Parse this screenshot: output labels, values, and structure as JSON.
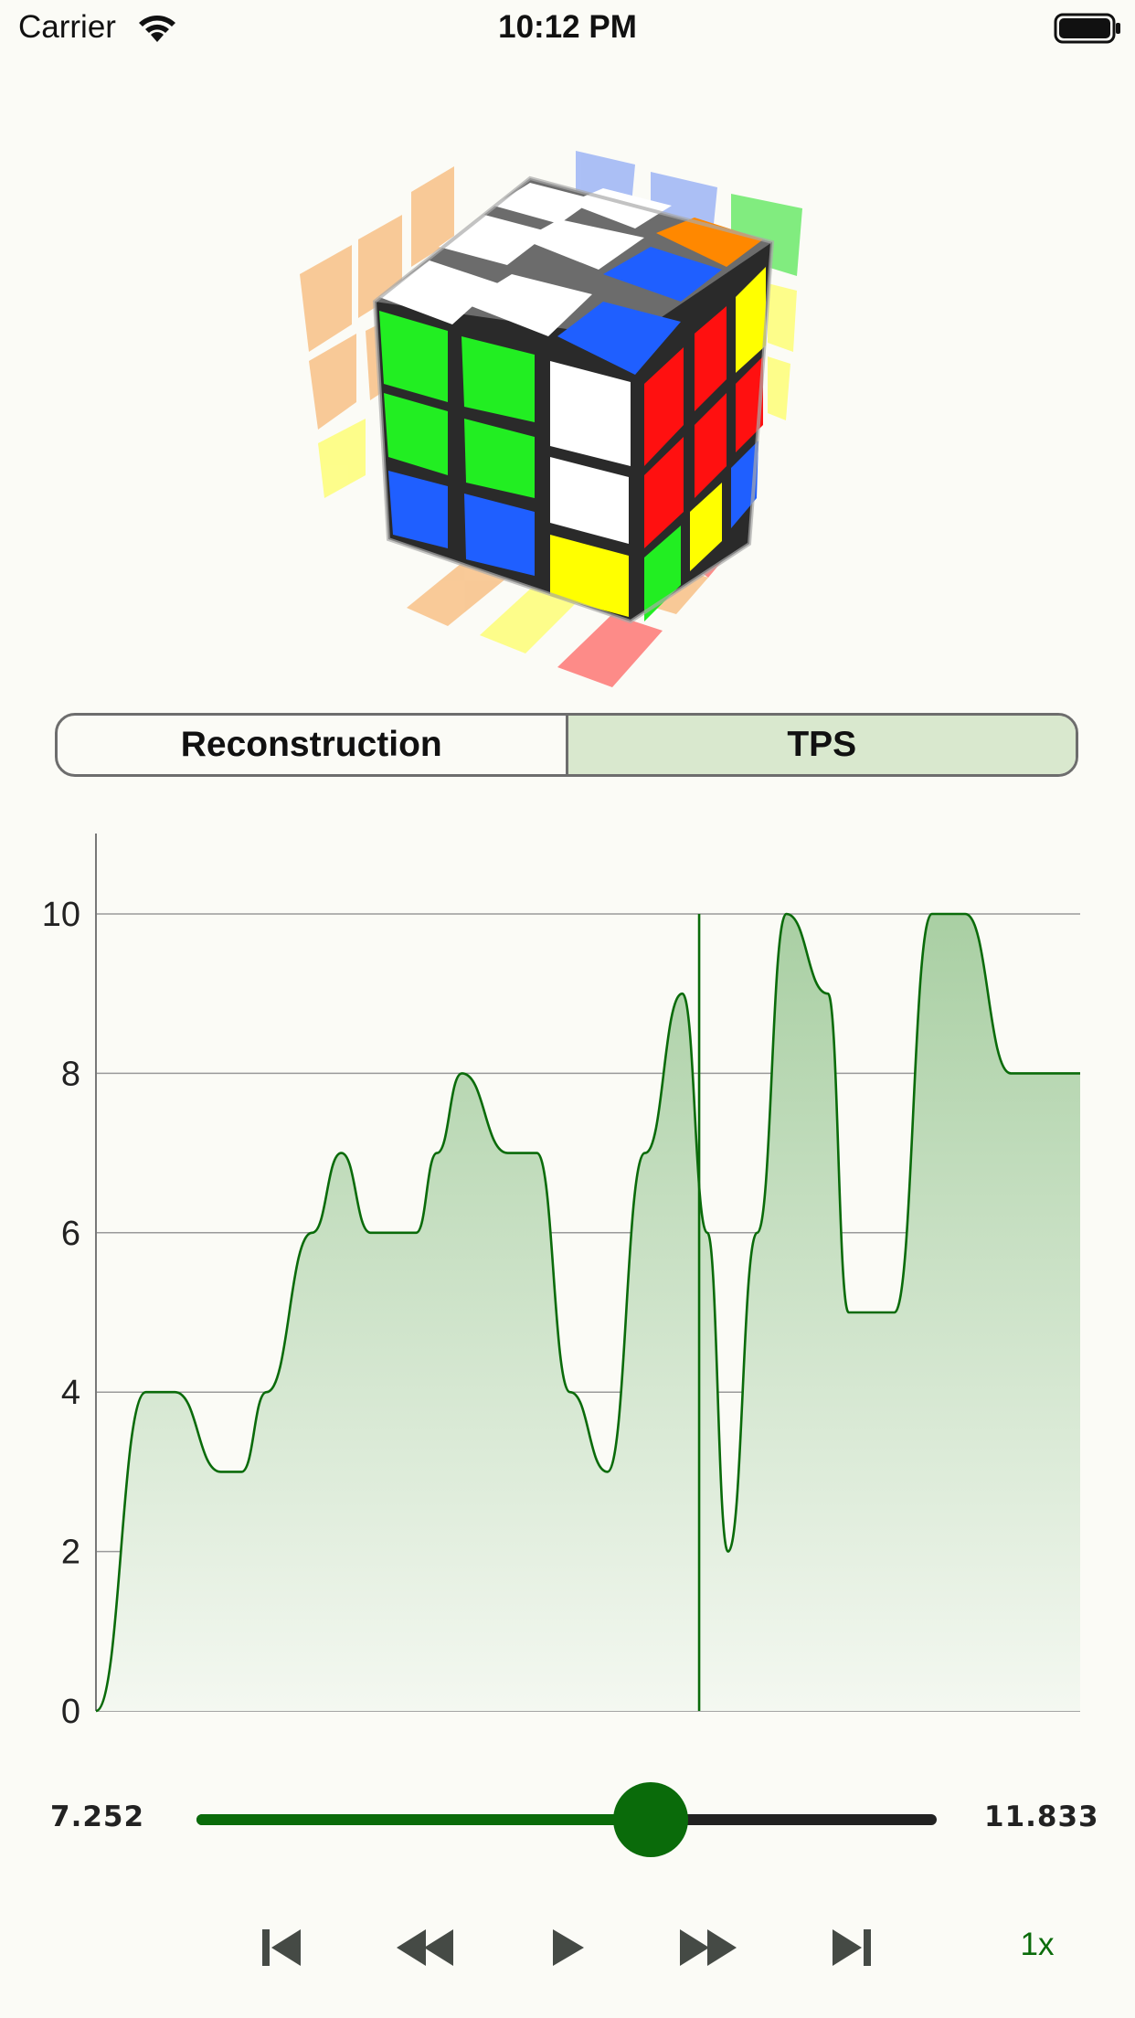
{
  "status_bar": {
    "carrier": "Carrier",
    "time": "10:12 PM"
  },
  "segmented": {
    "tabs": [
      "Reconstruction",
      "TPS"
    ],
    "selected": "TPS"
  },
  "chart_data": {
    "type": "area",
    "y_ticks": [
      "0",
      "2",
      "4",
      "6",
      "8",
      "10"
    ],
    "ylim": [
      0,
      11
    ],
    "x_range": [
      0,
      11.833
    ],
    "cursor_x": 7.252,
    "x": [
      0,
      0.6,
      0.95,
      1.5,
      1.75,
      2.05,
      2.6,
      2.95,
      3.3,
      3.85,
      4.1,
      4.4,
      4.95,
      5.3,
      5.7,
      6.15,
      6.6,
      7.05,
      7.35,
      7.6,
      7.95,
      8.3,
      8.8,
      9.05,
      9.6,
      10.05,
      10.45,
      11.0,
      11.44,
      11.833
    ],
    "y": [
      0,
      4,
      4,
      3,
      3,
      4,
      6,
      7,
      6,
      6,
      7,
      8,
      7,
      7,
      4,
      3,
      7,
      9,
      6,
      2,
      6,
      10,
      9,
      5,
      5,
      10,
      10,
      8,
      8,
      8
    ],
    "color": "#0a6b0a",
    "fill_top": "#a9cfa3",
    "fill_bottom": "#f4f8f1"
  },
  "playback": {
    "current_time": "7.252",
    "total_time": "11.833",
    "progress": 0.613,
    "speed": "1x",
    "accent": "#0a6b0a"
  }
}
